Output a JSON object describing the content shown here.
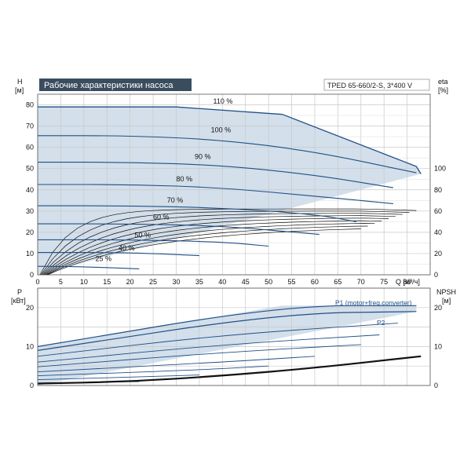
{
  "title": "Рабочие характеристики насоса",
  "model": "TPED 65-660/2-S, 3*400 V",
  "chart_data": [
    {
      "type": "line",
      "panel": "head",
      "x_unit_label": "Q [м³/ч]",
      "y_left_label": [
        "H",
        "[м]"
      ],
      "y_right_label": [
        "eta",
        "[%]"
      ],
      "xlim": [
        0,
        85
      ],
      "ylim": [
        0,
        85
      ],
      "x_ticks": [
        0,
        5,
        10,
        15,
        20,
        25,
        30,
        35,
        40,
        45,
        50,
        55,
        60,
        65,
        70,
        75,
        80
      ],
      "y_ticks": [
        0,
        10,
        20,
        30,
        40,
        50,
        60,
        70,
        80
      ],
      "eta_ticks": [
        0,
        20,
        40,
        60,
        80,
        100
      ],
      "eta_scale": {
        "eta_0_at_H": 0,
        "eta_100_at_H": 50
      },
      "grid": true,
      "operating_envelope": {
        "H": [
          [
            0,
            79
          ],
          [
            7.5,
            79
          ],
          [
            30,
            79
          ],
          [
            53,
            75.5
          ],
          [
            82,
            51
          ],
          [
            83,
            47.5
          ],
          [
            0,
            0
          ]
        ]
      },
      "speed_curves": [
        {
          "label": "110 %",
          "Q": [
            0,
            7.5,
            30,
            53
          ],
          "H": [
            79,
            79,
            79,
            75.5
          ],
          "outer": true
        },
        {
          "label": "",
          "Q": [
            53,
            82,
            83
          ],
          "H": [
            75.5,
            51,
            47.5
          ],
          "outer": true
        },
        {
          "label": "100 %",
          "Q": [
            0,
            20,
            40,
            60,
            82
          ],
          "H": [
            65.5,
            65.5,
            63.5,
            58,
            48
          ]
        },
        {
          "label": "90 %",
          "Q": [
            0,
            20,
            40,
            60,
            77
          ],
          "H": [
            53,
            53,
            51.5,
            47,
            41
          ]
        },
        {
          "label": "80 %",
          "Q": [
            0,
            20,
            40,
            60,
            77
          ],
          "H": [
            42.5,
            42.5,
            41,
            37,
            33.5
          ]
        },
        {
          "label": "70 %",
          "Q": [
            0,
            20,
            40,
            60,
            69
          ],
          "H": [
            32.5,
            32.5,
            31.5,
            28.5,
            25
          ]
        },
        {
          "label": "60 %",
          "Q": [
            0,
            20,
            40,
            61
          ],
          "H": [
            24,
            24,
            23,
            19
          ]
        },
        {
          "label": "50 %",
          "Q": [
            0,
            20,
            40,
            50
          ],
          "H": [
            16.5,
            16.5,
            15.5,
            13.5
          ]
        },
        {
          "label": "40 %",
          "Q": [
            0,
            20,
            35
          ],
          "H": [
            10.5,
            10.5,
            9
          ]
        },
        {
          "label": "25 %",
          "Q": [
            0,
            10,
            22
          ],
          "H": [
            4,
            3.8,
            2.8
          ]
        }
      ],
      "curve_label_positions": [
        {
          "label": "110 %",
          "Q": 38,
          "H": 80.5
        },
        {
          "label": "100 %",
          "Q": 37.5,
          "H": 67
        },
        {
          "label": "90 %",
          "Q": 34,
          "H": 54.5
        },
        {
          "label": "80 %",
          "Q": 30,
          "H": 44
        },
        {
          "label": "70 %",
          "Q": 28,
          "H": 34
        },
        {
          "label": "60 %",
          "Q": 25,
          "H": 26
        },
        {
          "label": "50 %",
          "Q": 21,
          "H": 17.5
        },
        {
          "label": "40 %",
          "Q": 17.5,
          "H": 11.5
        },
        {
          "label": "25 %",
          "Q": 12.5,
          "H": 6.5
        }
      ],
      "efficiency_curves_count": 9,
      "efficiency_peak_eta": [
        62,
        60,
        58,
        56,
        54,
        52,
        50,
        48,
        46
      ]
    },
    {
      "type": "line",
      "panel": "power_npsh",
      "y_left_label": [
        "P",
        "[кВт]"
      ],
      "y_right_label": [
        "NPSH",
        "[м]"
      ],
      "xlim": [
        0,
        85
      ],
      "ylim": [
        0,
        25
      ],
      "y_ticks": [
        0,
        10,
        20
      ],
      "npsh_ticks": [
        0,
        10,
        20
      ],
      "grid": true,
      "operating_envelope": {
        "P": [
          [
            0,
            10
          ],
          [
            53,
            20.5
          ],
          [
            82,
            20.5
          ],
          [
            82,
            19
          ],
          [
            0,
            0
          ]
        ]
      },
      "power_curves": [
        {
          "label": "P1 (motor+freq.converter)",
          "Q": [
            0,
            53,
            82
          ],
          "P": [
            10,
            20.5,
            20.5
          ]
        },
        {
          "label": "P2",
          "Q": [
            0,
            53,
            82
          ],
          "P": [
            9,
            18.5,
            19
          ]
        },
        {
          "label": "",
          "Q": [
            0,
            40,
            78
          ],
          "P": [
            7.5,
            13,
            16
          ]
        },
        {
          "label": "",
          "Q": [
            0,
            40,
            74
          ],
          "P": [
            6,
            10.5,
            13
          ]
        },
        {
          "label": "",
          "Q": [
            0,
            40,
            70
          ],
          "P": [
            4.8,
            8.5,
            10.5
          ]
        },
        {
          "label": "",
          "Q": [
            0,
            40,
            60
          ],
          "P": [
            3.5,
            6,
            7.5
          ]
        },
        {
          "label": "",
          "Q": [
            0,
            35,
            50
          ],
          "P": [
            2.5,
            4,
            5
          ]
        },
        {
          "label": "",
          "Q": [
            0,
            25,
            35
          ],
          "P": [
            1.5,
            2.3,
            2.7
          ]
        },
        {
          "label": "",
          "Q": [
            0,
            15,
            22
          ],
          "P": [
            0.6,
            0.9,
            1.0
          ]
        }
      ],
      "npsh_curve": {
        "Q": [
          0,
          20,
          40,
          60,
          83
        ],
        "NPSH": [
          0.5,
          1,
          2.5,
          4.5,
          7.5
        ]
      }
    }
  ]
}
